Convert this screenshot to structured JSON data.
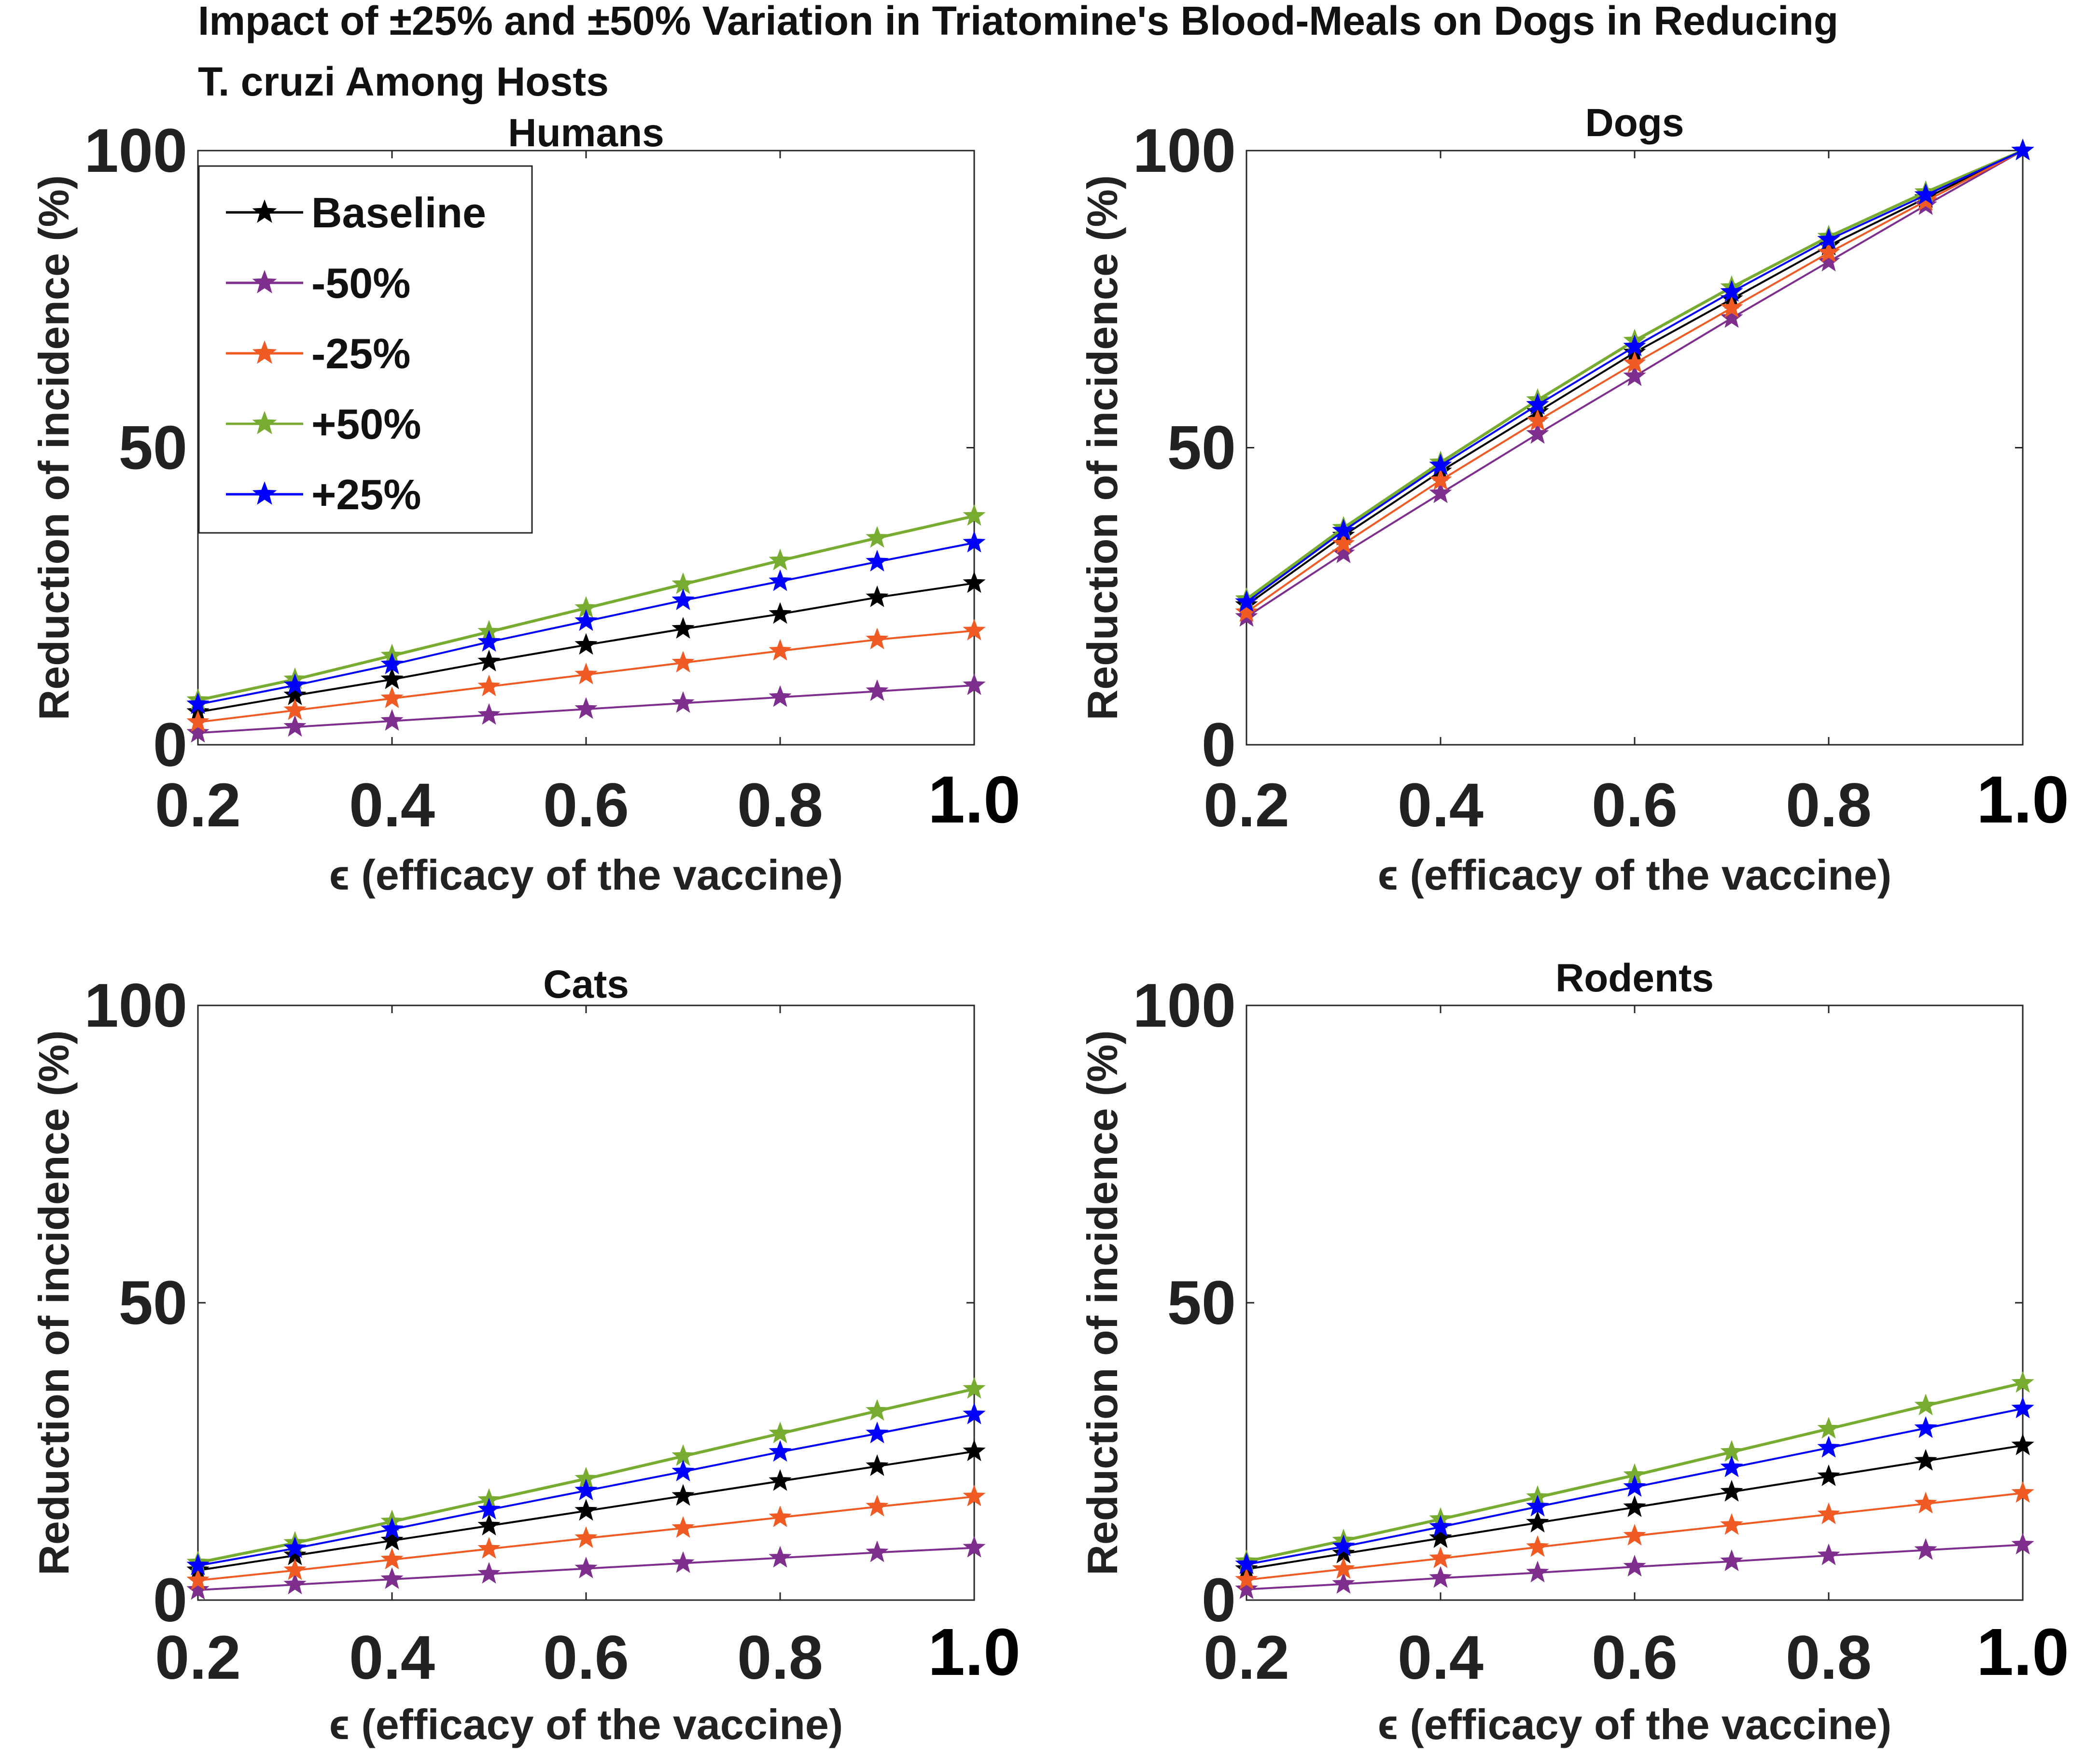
{
  "figure_title_line1": "Impact of ±25% and ±50% Variation in Triatomine's Blood-Meals on Dogs in Reducing",
  "figure_title_line2": "T. cruzi Among Hosts",
  "series_colors": {
    "Baseline": "#000000",
    "-50%": "#7e2f8e",
    "-25%": "#f05a23",
    "+50%": "#77ac30",
    "+25%": "#0000ff"
  },
  "legend": [
    "Baseline",
    "-50%",
    "-25%",
    "+50%",
    "+25%"
  ],
  "chart_data": [
    {
      "type": "line",
      "title": "Humans",
      "xlabel": "ϵ (efficacy of the vaccine)",
      "ylabel": "Reduction of incidence (%)",
      "x": [
        0.2,
        0.3,
        0.4,
        0.5,
        0.6,
        0.7,
        0.8,
        0.9,
        1.0
      ],
      "xticks": [
        "0.2",
        "0.4",
        "0.6",
        "0.8",
        "1.0"
      ],
      "yticks": [
        "0",
        "50",
        "100"
      ],
      "xlim": [
        0.2,
        1.0
      ],
      "ylim": [
        0,
        100
      ],
      "series": [
        {
          "name": "Baseline",
          "values": [
            5.5,
            8.3,
            11.0,
            14.0,
            16.8,
            19.5,
            22.0,
            24.8,
            27.2
          ]
        },
        {
          "name": "-50%",
          "values": [
            2.0,
            3.0,
            4.0,
            5.0,
            6.0,
            7.0,
            8.0,
            9.0,
            10.0
          ]
        },
        {
          "name": "-25%",
          "values": [
            3.8,
            5.8,
            7.8,
            9.8,
            11.8,
            13.8,
            15.8,
            17.7,
            19.2
          ]
        },
        {
          "name": "+50%",
          "values": [
            7.5,
            11.0,
            15.0,
            19.0,
            23.0,
            27.0,
            31.0,
            34.8,
            38.5
          ]
        },
        {
          "name": "+25%",
          "values": [
            6.8,
            10.0,
            13.5,
            17.3,
            20.8,
            24.3,
            27.5,
            30.8,
            34.0
          ]
        }
      ]
    },
    {
      "type": "line",
      "title": "Dogs",
      "xlabel": "ϵ (efficacy of the vaccine)",
      "ylabel": "Reduction of incidence (%)",
      "x": [
        0.2,
        0.3,
        0.4,
        0.5,
        0.6,
        0.7,
        0.8,
        0.9,
        1.0
      ],
      "xticks": [
        "0.2",
        "0.4",
        "0.6",
        "0.8",
        "1.0"
      ],
      "yticks": [
        "0",
        "50",
        "100"
      ],
      "xlim": [
        0.2,
        1.0
      ],
      "ylim": [
        0,
        100
      ],
      "series": [
        {
          "name": "Baseline",
          "values": [
            23.5,
            35.2,
            46.0,
            56.0,
            66.0,
            75.0,
            84.0,
            92.0,
            100.0
          ]
        },
        {
          "name": "-50%",
          "values": [
            21.5,
            32.2,
            42.3,
            52.3,
            62.0,
            71.8,
            81.3,
            90.8,
            100.0
          ]
        },
        {
          "name": "-25%",
          "values": [
            22.3,
            33.8,
            44.5,
            54.5,
            64.2,
            73.5,
            82.8,
            91.5,
            100.0
          ]
        },
        {
          "name": "+50%",
          "values": [
            24.5,
            36.5,
            47.5,
            58.0,
            68.0,
            77.0,
            85.5,
            93.0,
            100.0
          ]
        },
        {
          "name": "+25%",
          "values": [
            24.0,
            36.0,
            47.0,
            57.2,
            67.0,
            76.2,
            85.0,
            92.5,
            100.0
          ]
        }
      ]
    },
    {
      "type": "line",
      "title": "Cats",
      "xlabel": "ϵ (efficacy of the vaccine)",
      "ylabel": "Reduction of incidence (%)",
      "x": [
        0.2,
        0.3,
        0.4,
        0.5,
        0.6,
        0.7,
        0.8,
        0.9,
        1.0
      ],
      "xticks": [
        "0.2",
        "0.4",
        "0.6",
        "0.8",
        "1.0"
      ],
      "yticks": [
        "0",
        "50",
        "100"
      ],
      "xlim": [
        0.2,
        1.0
      ],
      "ylim": [
        0,
        100
      ],
      "series": [
        {
          "name": "Baseline",
          "values": [
            5.0,
            7.5,
            10.0,
            12.5,
            15.0,
            17.5,
            20.0,
            22.5,
            25.0
          ]
        },
        {
          "name": "-50%",
          "values": [
            1.7,
            2.6,
            3.5,
            4.4,
            5.3,
            6.2,
            7.1,
            8.0,
            8.8
          ]
        },
        {
          "name": "-25%",
          "values": [
            3.3,
            5.0,
            6.8,
            8.6,
            10.4,
            12.1,
            13.9,
            15.7,
            17.4
          ]
        },
        {
          "name": "+50%",
          "values": [
            6.3,
            9.6,
            13.2,
            16.8,
            20.4,
            24.2,
            28.0,
            31.8,
            35.5
          ]
        },
        {
          "name": "+25%",
          "values": [
            5.8,
            8.7,
            11.9,
            15.2,
            18.4,
            21.6,
            24.9,
            28.0,
            31.2
          ]
        }
      ]
    },
    {
      "type": "line",
      "title": "Rodents",
      "xlabel": "ϵ (efficacy of the vaccine)",
      "ylabel": "Reduction of incidence (%)",
      "x": [
        0.2,
        0.3,
        0.4,
        0.5,
        0.6,
        0.7,
        0.8,
        0.9,
        1.0
      ],
      "xticks": [
        "0.2",
        "0.4",
        "0.6",
        "0.8",
        "1.0"
      ],
      "yticks": [
        "0",
        "50",
        "100"
      ],
      "xlim": [
        0.2,
        1.0
      ],
      "ylim": [
        0,
        100
      ],
      "series": [
        {
          "name": "Baseline",
          "values": [
            5.2,
            7.8,
            10.4,
            13.0,
            15.6,
            18.2,
            20.8,
            23.4,
            26.0
          ]
        },
        {
          "name": "-50%",
          "values": [
            1.8,
            2.7,
            3.7,
            4.6,
            5.6,
            6.5,
            7.5,
            8.4,
            9.3
          ]
        },
        {
          "name": "-25%",
          "values": [
            3.4,
            5.2,
            7.0,
            8.9,
            10.8,
            12.6,
            14.4,
            16.2,
            18.0
          ]
        },
        {
          "name": "+50%",
          "values": [
            6.5,
            10.0,
            13.6,
            17.3,
            21.0,
            24.9,
            28.8,
            32.7,
            36.5
          ]
        },
        {
          "name": "+25%",
          "values": [
            6.0,
            9.0,
            12.3,
            15.7,
            19.0,
            22.3,
            25.6,
            28.9,
            32.2
          ]
        }
      ]
    }
  ]
}
